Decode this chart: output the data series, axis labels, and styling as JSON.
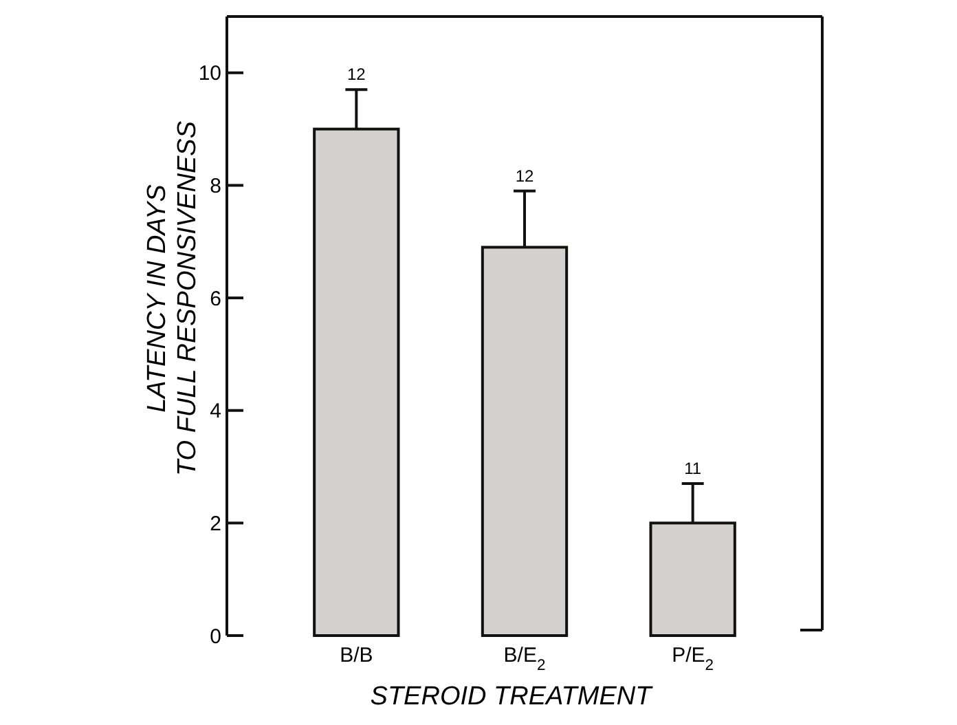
{
  "chart_data": {
    "type": "bar",
    "xlabel": "STEROID TREATMENT",
    "ylabel": "LATENCY IN DAYS\nTO FULL RESPONSIVENESS",
    "categories": [
      "B/B",
      "B/E$_{2}$",
      "P/E$_{2}$"
    ],
    "values": [
      9.0,
      6.9,
      2.0
    ],
    "color": "#d4d2cf",
    "errors": [
      [
        9.0,
        9.7
      ],
      [
        6.9,
        7.9
      ],
      [
        2.0,
        2.7
      ]
    ],
    "ylim": [
      0,
      11
    ],
    "yticks": [
      0,
      2,
      4,
      6,
      8,
      10
    ],
    "annotations": [
      {
        "text": "12",
        "x": "B/B",
        "y": 9.7
      },
      {
        "text": "12",
        "x": "B/E$_{2}$",
        "y": 7.9
      },
      {
        "text": "11",
        "x": "P/E$_{2}$",
        "y": 2.7
      }
    ]
  }
}
